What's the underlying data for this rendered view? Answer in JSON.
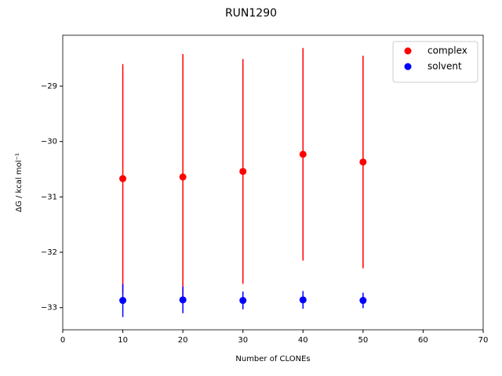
{
  "chart_data": {
    "type": "scatter",
    "title": "RUN1290",
    "x_label": "Number of CLONEs",
    "y_label": "ΔG / kcal mol⁻¹",
    "series": [
      {
        "name": "complex",
        "color": "#ff0000",
        "x": [
          10,
          20,
          30,
          40,
          50
        ],
        "values": [
          -30.67,
          -30.64,
          -30.54,
          -30.23,
          -30.37
        ],
        "errors": [
          2.07,
          2.22,
          2.03,
          1.92,
          1.92
        ]
      },
      {
        "name": "solvent",
        "color": "#0000ff",
        "x": [
          10,
          20,
          30,
          40,
          50
        ],
        "values": [
          -32.87,
          -32.86,
          -32.87,
          -32.86,
          -32.87
        ],
        "errors": [
          0.3,
          0.24,
          0.16,
          0.16,
          0.14
        ]
      }
    ],
    "xlim": [
      0,
      70
    ],
    "xticks": [
      0,
      10,
      20,
      30,
      40,
      50,
      60,
      70
    ],
    "ylim": [
      -33.4,
      -28.08
    ],
    "yticks": [
      {
        "value": -33,
        "label": "−33"
      },
      {
        "value": -32,
        "label": "−32"
      },
      {
        "value": -31,
        "label": "−31"
      },
      {
        "value": -30,
        "label": "−30"
      },
      {
        "value": -29,
        "label": "−29"
      }
    ],
    "legend": "upper right",
    "grid": false
  }
}
